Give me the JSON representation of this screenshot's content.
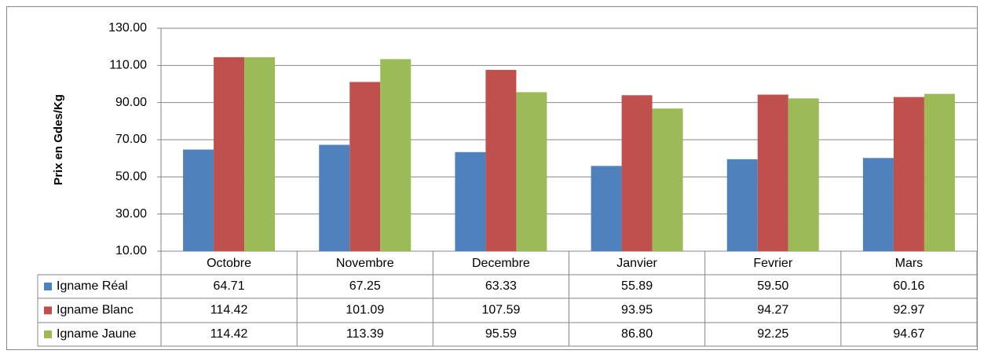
{
  "chart_data": {
    "type": "bar",
    "y_label": "Prix en Gdes/Kg",
    "categories": [
      "Octobre",
      "Novembre",
      "Decembre",
      "Janvier",
      "Fevrier",
      "Mars"
    ],
    "series": [
      {
        "name": "Igname Réal",
        "color": "#4f81bd",
        "values": [
          64.71,
          67.25,
          63.33,
          55.89,
          59.5,
          60.16
        ],
        "value_labels": [
          "64.71",
          "67.25",
          "63.33",
          "55.89",
          "59.50",
          "60.16"
        ]
      },
      {
        "name": "Igname Blanc",
        "color": "#c0504d",
        "values": [
          114.42,
          101.09,
          107.59,
          93.95,
          94.27,
          92.97
        ],
        "value_labels": [
          "114.42",
          "101.09",
          "107.59",
          "93.95",
          "94.27",
          "92.97"
        ]
      },
      {
        "name": "Igname Jaune",
        "color": "#9bbb59",
        "values": [
          114.42,
          113.39,
          95.59,
          86.8,
          92.25,
          94.67
        ],
        "value_labels": [
          "114.42",
          "113.39",
          "95.59",
          "86.80",
          "92.25",
          "94.67"
        ]
      }
    ],
    "ylim": [
      10,
      130
    ],
    "yticks": [
      {
        "value": 10,
        "label": "10.00"
      },
      {
        "value": 30,
        "label": "30.00"
      },
      {
        "value": 50,
        "label": "50.00"
      },
      {
        "value": 70,
        "label": "70.00"
      },
      {
        "value": 90,
        "label": "90.00"
      },
      {
        "value": 110,
        "label": "110.00"
      },
      {
        "value": 130,
        "label": "130.00"
      }
    ],
    "grid": true
  }
}
